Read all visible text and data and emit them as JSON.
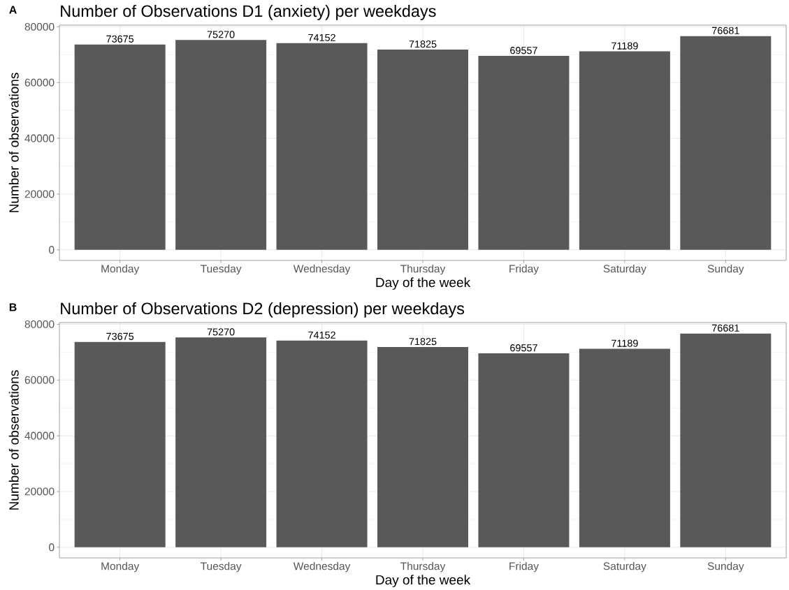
{
  "chart_data": [
    {
      "type": "bar",
      "title": "Number of Observations D1 (anxiety) per weekdays",
      "xlabel": "Day of the week",
      "ylabel": "Number of observations",
      "categories": [
        "Monday",
        "Tuesday",
        "Wednesday",
        "Thursday",
        "Friday",
        "Saturday",
        "Sunday"
      ],
      "values": [
        73675,
        75270,
        74152,
        71825,
        69557,
        71189,
        76681
      ],
      "color": "#595959",
      "ylim": [
        -3800,
        80600
      ],
      "yticks": [
        0,
        20000,
        40000,
        60000,
        80000
      ],
      "grid": true,
      "data_labels": true,
      "annotations": [
        "A"
      ]
    },
    {
      "type": "bar",
      "title": "Number of Observations D2 (depression) per weekdays",
      "xlabel": "Day of the week",
      "ylabel": "Number of observations",
      "categories": [
        "Monday",
        "Tuesday",
        "Wednesday",
        "Thursday",
        "Friday",
        "Saturday",
        "Sunday"
      ],
      "values": [
        73675,
        75270,
        74152,
        71825,
        69557,
        71189,
        76681
      ],
      "color": "#595959",
      "ylim": [
        -3800,
        80600
      ],
      "yticks": [
        0,
        20000,
        40000,
        60000,
        80000
      ],
      "grid": true,
      "data_labels": true,
      "annotations": [
        "B"
      ]
    }
  ]
}
